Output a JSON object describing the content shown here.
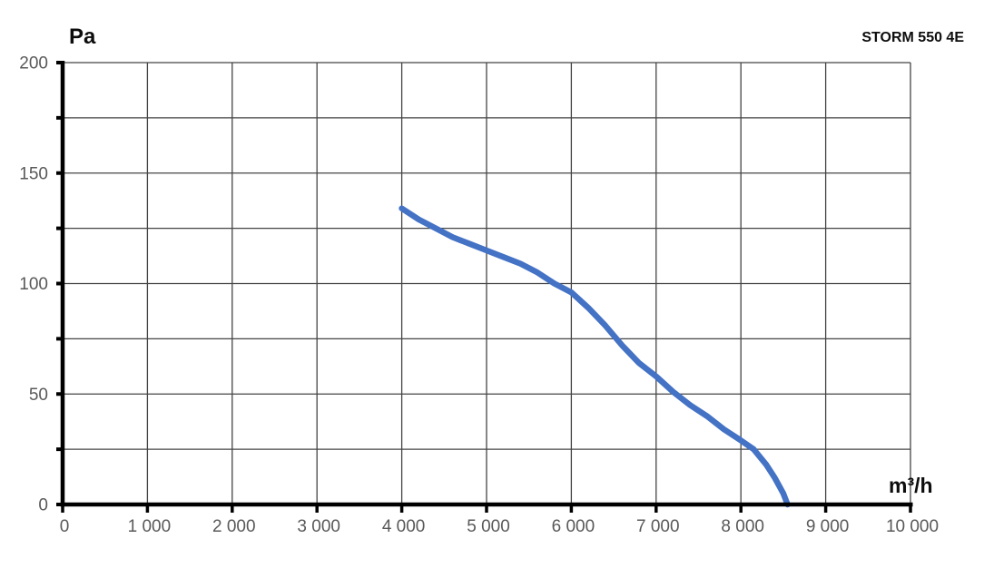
{
  "header": {
    "model": "STORM 550 4E"
  },
  "chart_data": {
    "type": "line",
    "title": "STORM 550 4E",
    "xlabel": "m³/h",
    "ylabel": "Pa",
    "xlim": [
      0,
      10000
    ],
    "ylim": [
      0,
      200
    ],
    "grid": true,
    "x_tick_step": 1000,
    "y_tick_step": 25,
    "x_tick_labels": [
      "0",
      "1 000",
      "2 000",
      "3 000",
      "4 000",
      "5 000",
      "6 000",
      "7 000",
      "8 000",
      "9 000",
      "10 000"
    ],
    "y_tick_labels": [
      "0",
      "50",
      "100",
      "150",
      "200"
    ],
    "y_label_value_step": 50,
    "legend": "none",
    "series": [
      {
        "name": "STORM 550 4E pressure-flow curve",
        "color": "#4472c4",
        "points": [
          [
            4000,
            134
          ],
          [
            4200,
            129
          ],
          [
            4400,
            125
          ],
          [
            4600,
            121
          ],
          [
            4800,
            118
          ],
          [
            5000,
            115
          ],
          [
            5200,
            112
          ],
          [
            5400,
            109
          ],
          [
            5600,
            105
          ],
          [
            5800,
            100
          ],
          [
            6000,
            96
          ],
          [
            6200,
            89
          ],
          [
            6400,
            81
          ],
          [
            6600,
            72
          ],
          [
            6800,
            64
          ],
          [
            7000,
            58
          ],
          [
            7200,
            51
          ],
          [
            7400,
            45
          ],
          [
            7600,
            40
          ],
          [
            7800,
            34
          ],
          [
            8000,
            29
          ],
          [
            8150,
            25
          ],
          [
            8300,
            18
          ],
          [
            8400,
            12
          ],
          [
            8500,
            5
          ],
          [
            8550,
            0
          ]
        ]
      }
    ]
  },
  "colors": {
    "curve": "#4472c4",
    "grid": "#454545",
    "axis": "#000000",
    "tick_label": "#595959",
    "unit_label": "#0d0d0d",
    "background": "#ffffff"
  }
}
